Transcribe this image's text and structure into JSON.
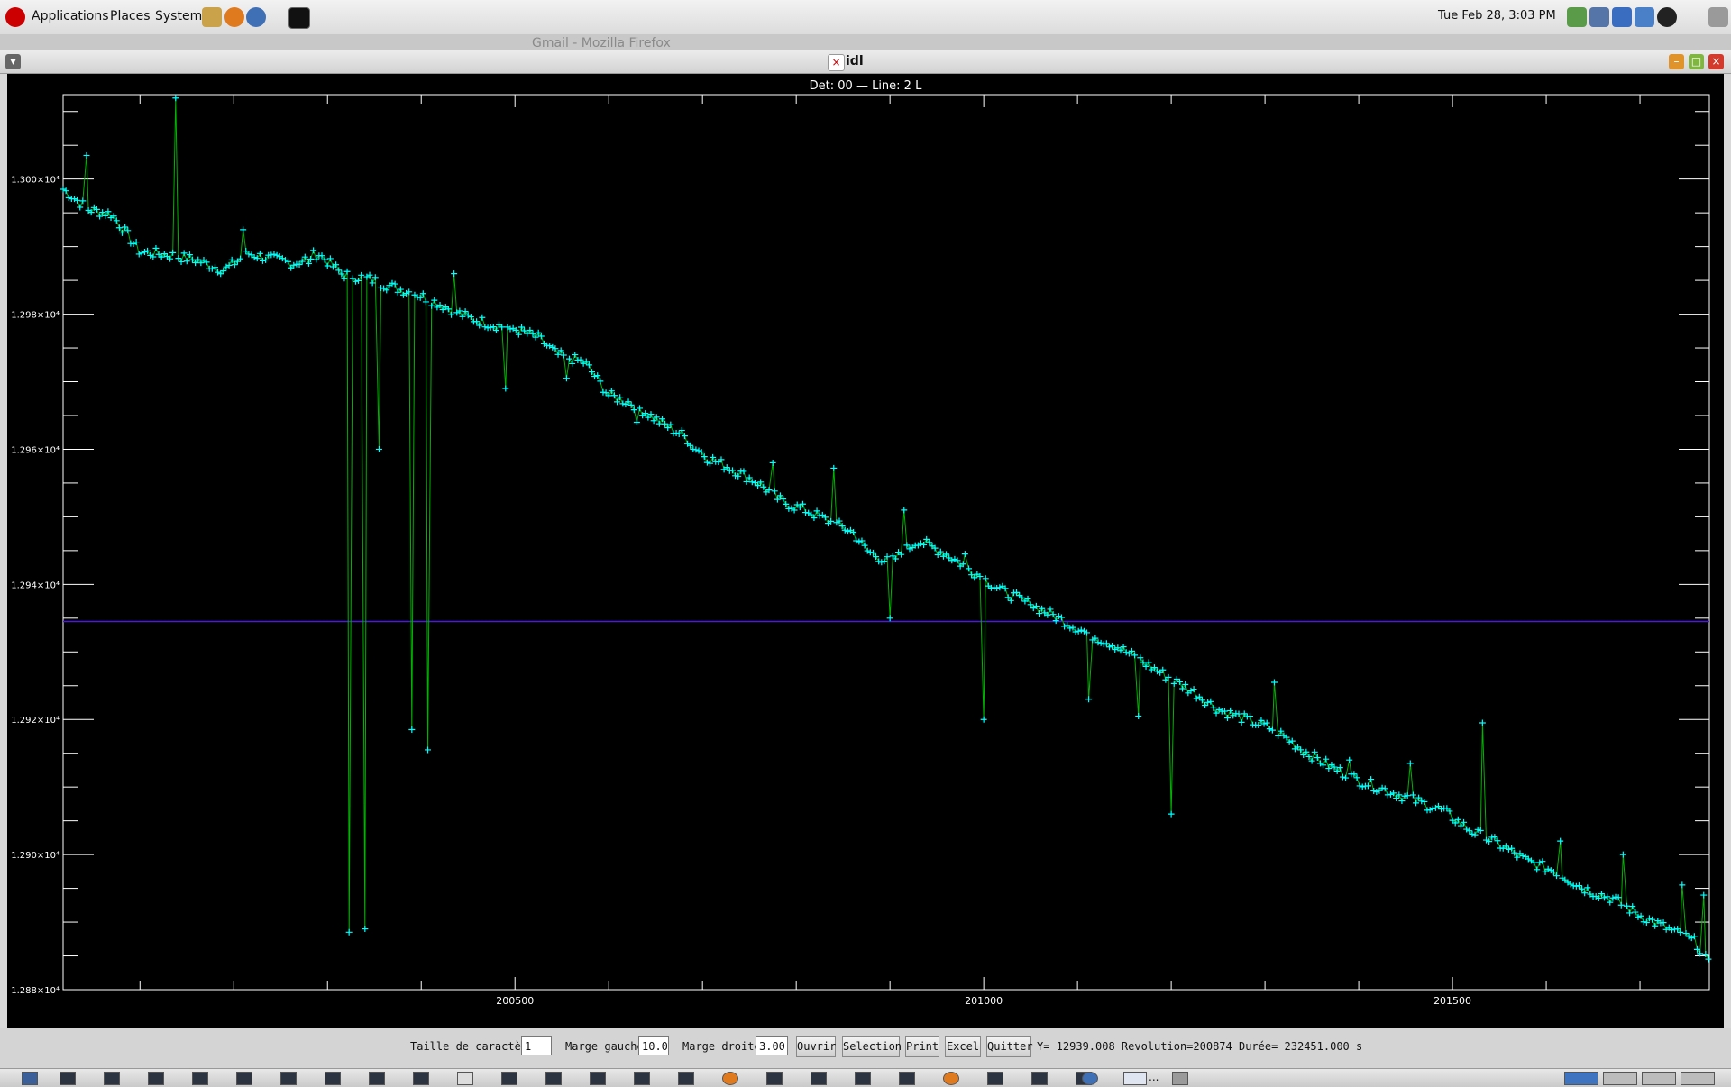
{
  "top_panel": {
    "menus": [
      "Applications",
      "Places",
      "System"
    ],
    "clock": "Tue Feb 28,  3:03 PM"
  },
  "background_window": {
    "title": "Gmail - Mozilla Firefox"
  },
  "window": {
    "title": "idl"
  },
  "plot": {
    "title": "Det: 00 — Line:    2 L"
  },
  "controls": {
    "font_size_label": "Taille de caractère",
    "font_size_value": "1",
    "left_margin_label": "Marge gauche",
    "left_margin_value": "10.0",
    "right_margin_label": "Marge droite",
    "right_margin_value": "3.00",
    "open_label": "Ouvrir",
    "selection_label": "Selection",
    "print_label": "Print",
    "excel_label": "Excel",
    "quit_label": "Quitter",
    "readout": "Y=    12939.008 Revolution=200874 Durée=  232451.000 s"
  },
  "taskbar": {
    "task_label": "..."
  },
  "colors": {
    "background": "#000000",
    "series": "#00ffff",
    "connector": "#00b300",
    "reference_line": "#4b1bd6",
    "axes": "#ffffff"
  },
  "chart_data": {
    "type": "line",
    "title": "Det: 00 — Line:    2 L",
    "xlabel": "",
    "ylabel": "",
    "xlim": [
      200018,
      201774
    ],
    "ylim": [
      12880,
      13012.5
    ],
    "x_ticks": [
      200500,
      201000,
      201500
    ],
    "y_tick_labels": [
      "1.288×10⁴",
      "1.290×10⁴",
      "1.292×10⁴",
      "1.294×10⁴",
      "1.296×10⁴",
      "1.298×10⁴",
      "1.300×10⁴"
    ],
    "y_ticks": [
      12880,
      12900,
      12920,
      12940,
      12960,
      12980,
      13000
    ],
    "reference_line_y": 12934.5,
    "series": [
      {
        "marker": "+",
        "points": [
          [
            200018,
            12998.5
          ],
          [
            200045,
            12995.5
          ],
          [
            200070,
            12994.8
          ],
          [
            200100,
            12989.2
          ],
          [
            200130,
            12988.8
          ],
          [
            200160,
            12988.0
          ],
          [
            200190,
            12986.5
          ],
          [
            200215,
            12989.0
          ],
          [
            200240,
            12988.2
          ],
          [
            200265,
            12987.5
          ],
          [
            200290,
            12989.0
          ],
          [
            200315,
            12986.0
          ],
          [
            200345,
            12985.2
          ],
          [
            200370,
            12984.0
          ],
          [
            200395,
            12983.0
          ],
          [
            200420,
            12981.5
          ],
          [
            200450,
            12979.5
          ],
          [
            200475,
            12978.5
          ],
          [
            200500,
            12977.8
          ],
          [
            200525,
            12976.5
          ],
          [
            200545,
            12974.0
          ],
          [
            200575,
            12972.8
          ],
          [
            200600,
            12968.0
          ],
          [
            200625,
            12966.8
          ],
          [
            200655,
            12964.0
          ],
          [
            200680,
            12962.0
          ],
          [
            200705,
            12958.8
          ],
          [
            200730,
            12957.2
          ],
          [
            200760,
            12955.0
          ],
          [
            200785,
            12952.2
          ],
          [
            200810,
            12951.0
          ],
          [
            200840,
            12949.0
          ],
          [
            200860,
            12947.8
          ],
          [
            200875,
            12945.0
          ],
          [
            200900,
            12943.2
          ],
          [
            200930,
            12946.5
          ],
          [
            200960,
            12944.5
          ],
          [
            200990,
            12941.8
          ],
          [
            201020,
            12939.0
          ],
          [
            201050,
            12937.0
          ],
          [
            201080,
            12935.0
          ],
          [
            201110,
            12932.8
          ],
          [
            201140,
            12931.0
          ],
          [
            201170,
            12928.5
          ],
          [
            201200,
            12926.0
          ],
          [
            201225,
            12924.0
          ],
          [
            201250,
            12921.5
          ],
          [
            201280,
            12920.0
          ],
          [
            201310,
            12918.5
          ],
          [
            201340,
            12915.5
          ],
          [
            201370,
            12913.0
          ],
          [
            201400,
            12911.0
          ],
          [
            201430,
            12909.5
          ],
          [
            201460,
            12908.0
          ],
          [
            201490,
            12906.5
          ],
          [
            201520,
            12903.5
          ],
          [
            201550,
            12901.5
          ],
          [
            201580,
            12899.0
          ],
          [
            201610,
            12897.5
          ],
          [
            201640,
            12895.0
          ],
          [
            201670,
            12893.5
          ],
          [
            201700,
            12891.0
          ],
          [
            201730,
            12889.0
          ],
          [
            201760,
            12887.0
          ],
          [
            201774,
            12883.5
          ]
        ],
        "spikes": [
          [
            200043,
            13003.5
          ],
          [
            200138,
            13012.0
          ],
          [
            200210,
            12992.5
          ],
          [
            200280,
            12987.5
          ],
          [
            200340,
            12889.0
          ],
          [
            200407,
            12915.5
          ],
          [
            200435,
            12986.0
          ],
          [
            200495,
            12977.8
          ],
          [
            200555,
            12970.5
          ],
          [
            200630,
            12964.0
          ],
          [
            200690,
            12960.0
          ],
          [
            200775,
            12958.0
          ],
          [
            200840,
            12957.2
          ],
          [
            200915,
            12951.0
          ],
          [
            200980,
            12944.5
          ],
          [
            201050,
            12937.0
          ],
          [
            201112,
            12923.0
          ],
          [
            201165,
            12920.5
          ],
          [
            201310,
            12925.5
          ],
          [
            201390,
            12914.0
          ],
          [
            201455,
            12913.5
          ],
          [
            201532,
            12919.5
          ],
          [
            201615,
            12902.0
          ],
          [
            201682,
            12900.0
          ],
          [
            201745,
            12895.5
          ],
          [
            201768,
            12894.0
          ]
        ],
        "dips": [
          [
            200323,
            12888.5
          ],
          [
            200355,
            12960.0
          ],
          [
            200390,
            12918.5
          ],
          [
            200490,
            12969.0
          ],
          [
            200900,
            12935.0
          ],
          [
            201000,
            12920.0
          ],
          [
            201200,
            12906.0
          ]
        ]
      }
    ]
  }
}
